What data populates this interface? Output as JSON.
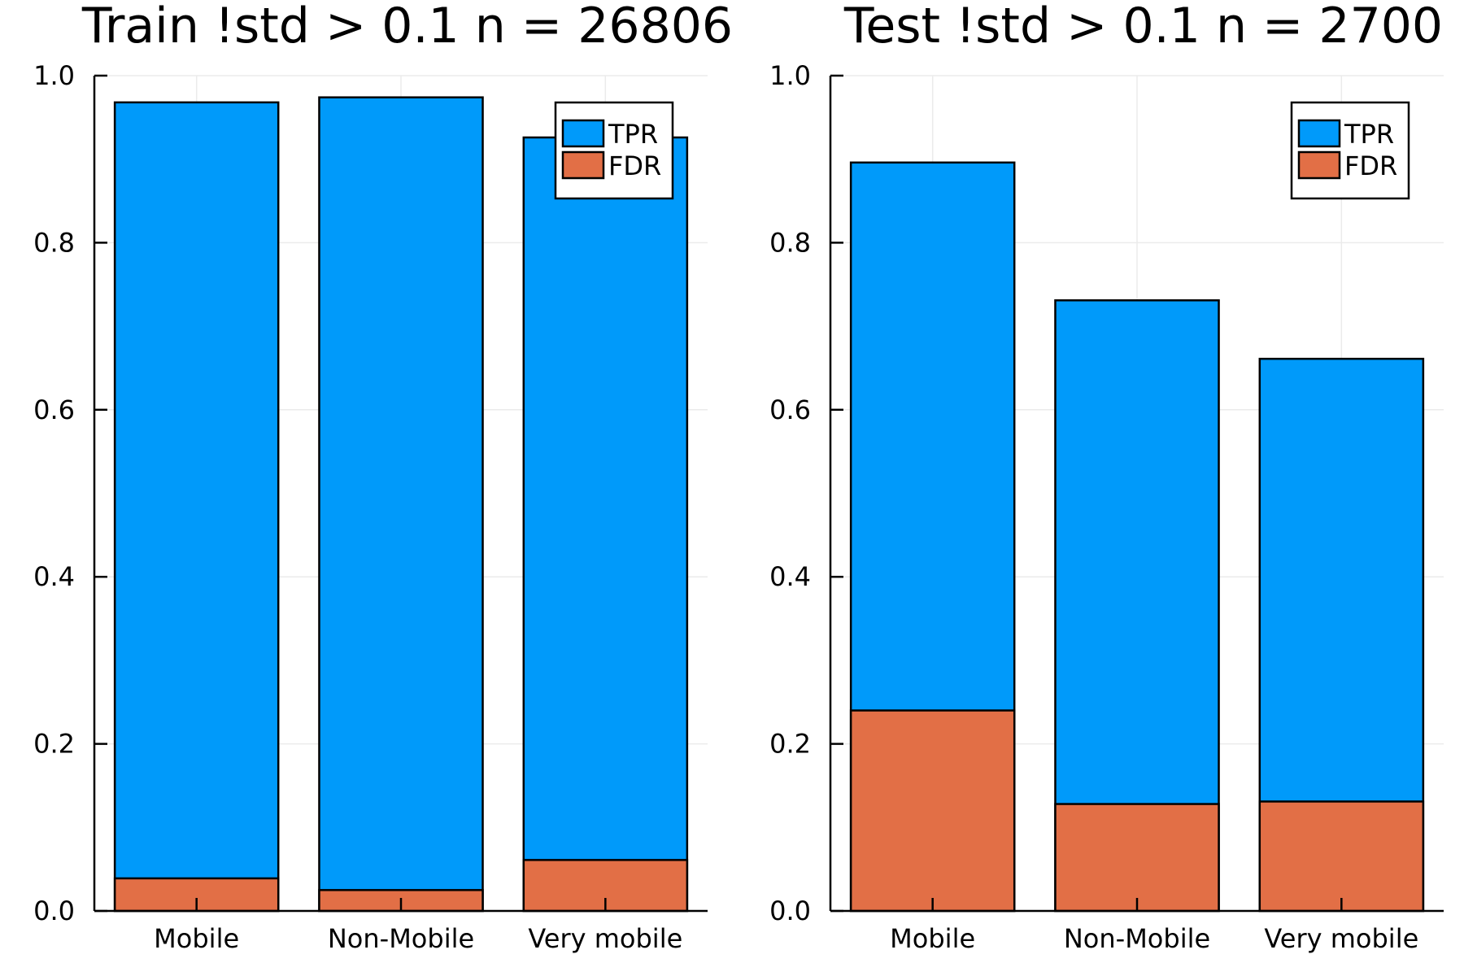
{
  "colors": {
    "tpr": "#009AFA",
    "fdr": "#E26F46"
  },
  "chart_data": [
    {
      "type": "bar",
      "title": "Train !std > 0.1 n = 26806",
      "xlabel": "",
      "ylabel": "",
      "categories": [
        "Mobile",
        "Non-Mobile",
        "Very mobile"
      ],
      "series": [
        {
          "name": "TPR",
          "values": [
            0.968,
            0.974,
            0.926
          ]
        },
        {
          "name": "FDR",
          "values": [
            0.039,
            0.025,
            0.061
          ]
        }
      ],
      "ylim": [
        0.0,
        1.0
      ],
      "yticks": [
        "0.0",
        "0.2",
        "0.4",
        "0.6",
        "0.8",
        "1.0"
      ],
      "grid": true,
      "legend_position": "top-right"
    },
    {
      "type": "bar",
      "title": "Test !std > 0.1 n = 2700",
      "xlabel": "",
      "ylabel": "",
      "categories": [
        "Mobile",
        "Non-Mobile",
        "Very mobile"
      ],
      "series": [
        {
          "name": "TPR",
          "values": [
            0.896,
            0.731,
            0.661
          ]
        },
        {
          "name": "FDR",
          "values": [
            0.24,
            0.128,
            0.131
          ]
        }
      ],
      "ylim": [
        0.0,
        1.0
      ],
      "yticks": [
        "0.0",
        "0.2",
        "0.4",
        "0.6",
        "0.8",
        "1.0"
      ],
      "grid": true,
      "legend_position": "top-right"
    }
  ]
}
